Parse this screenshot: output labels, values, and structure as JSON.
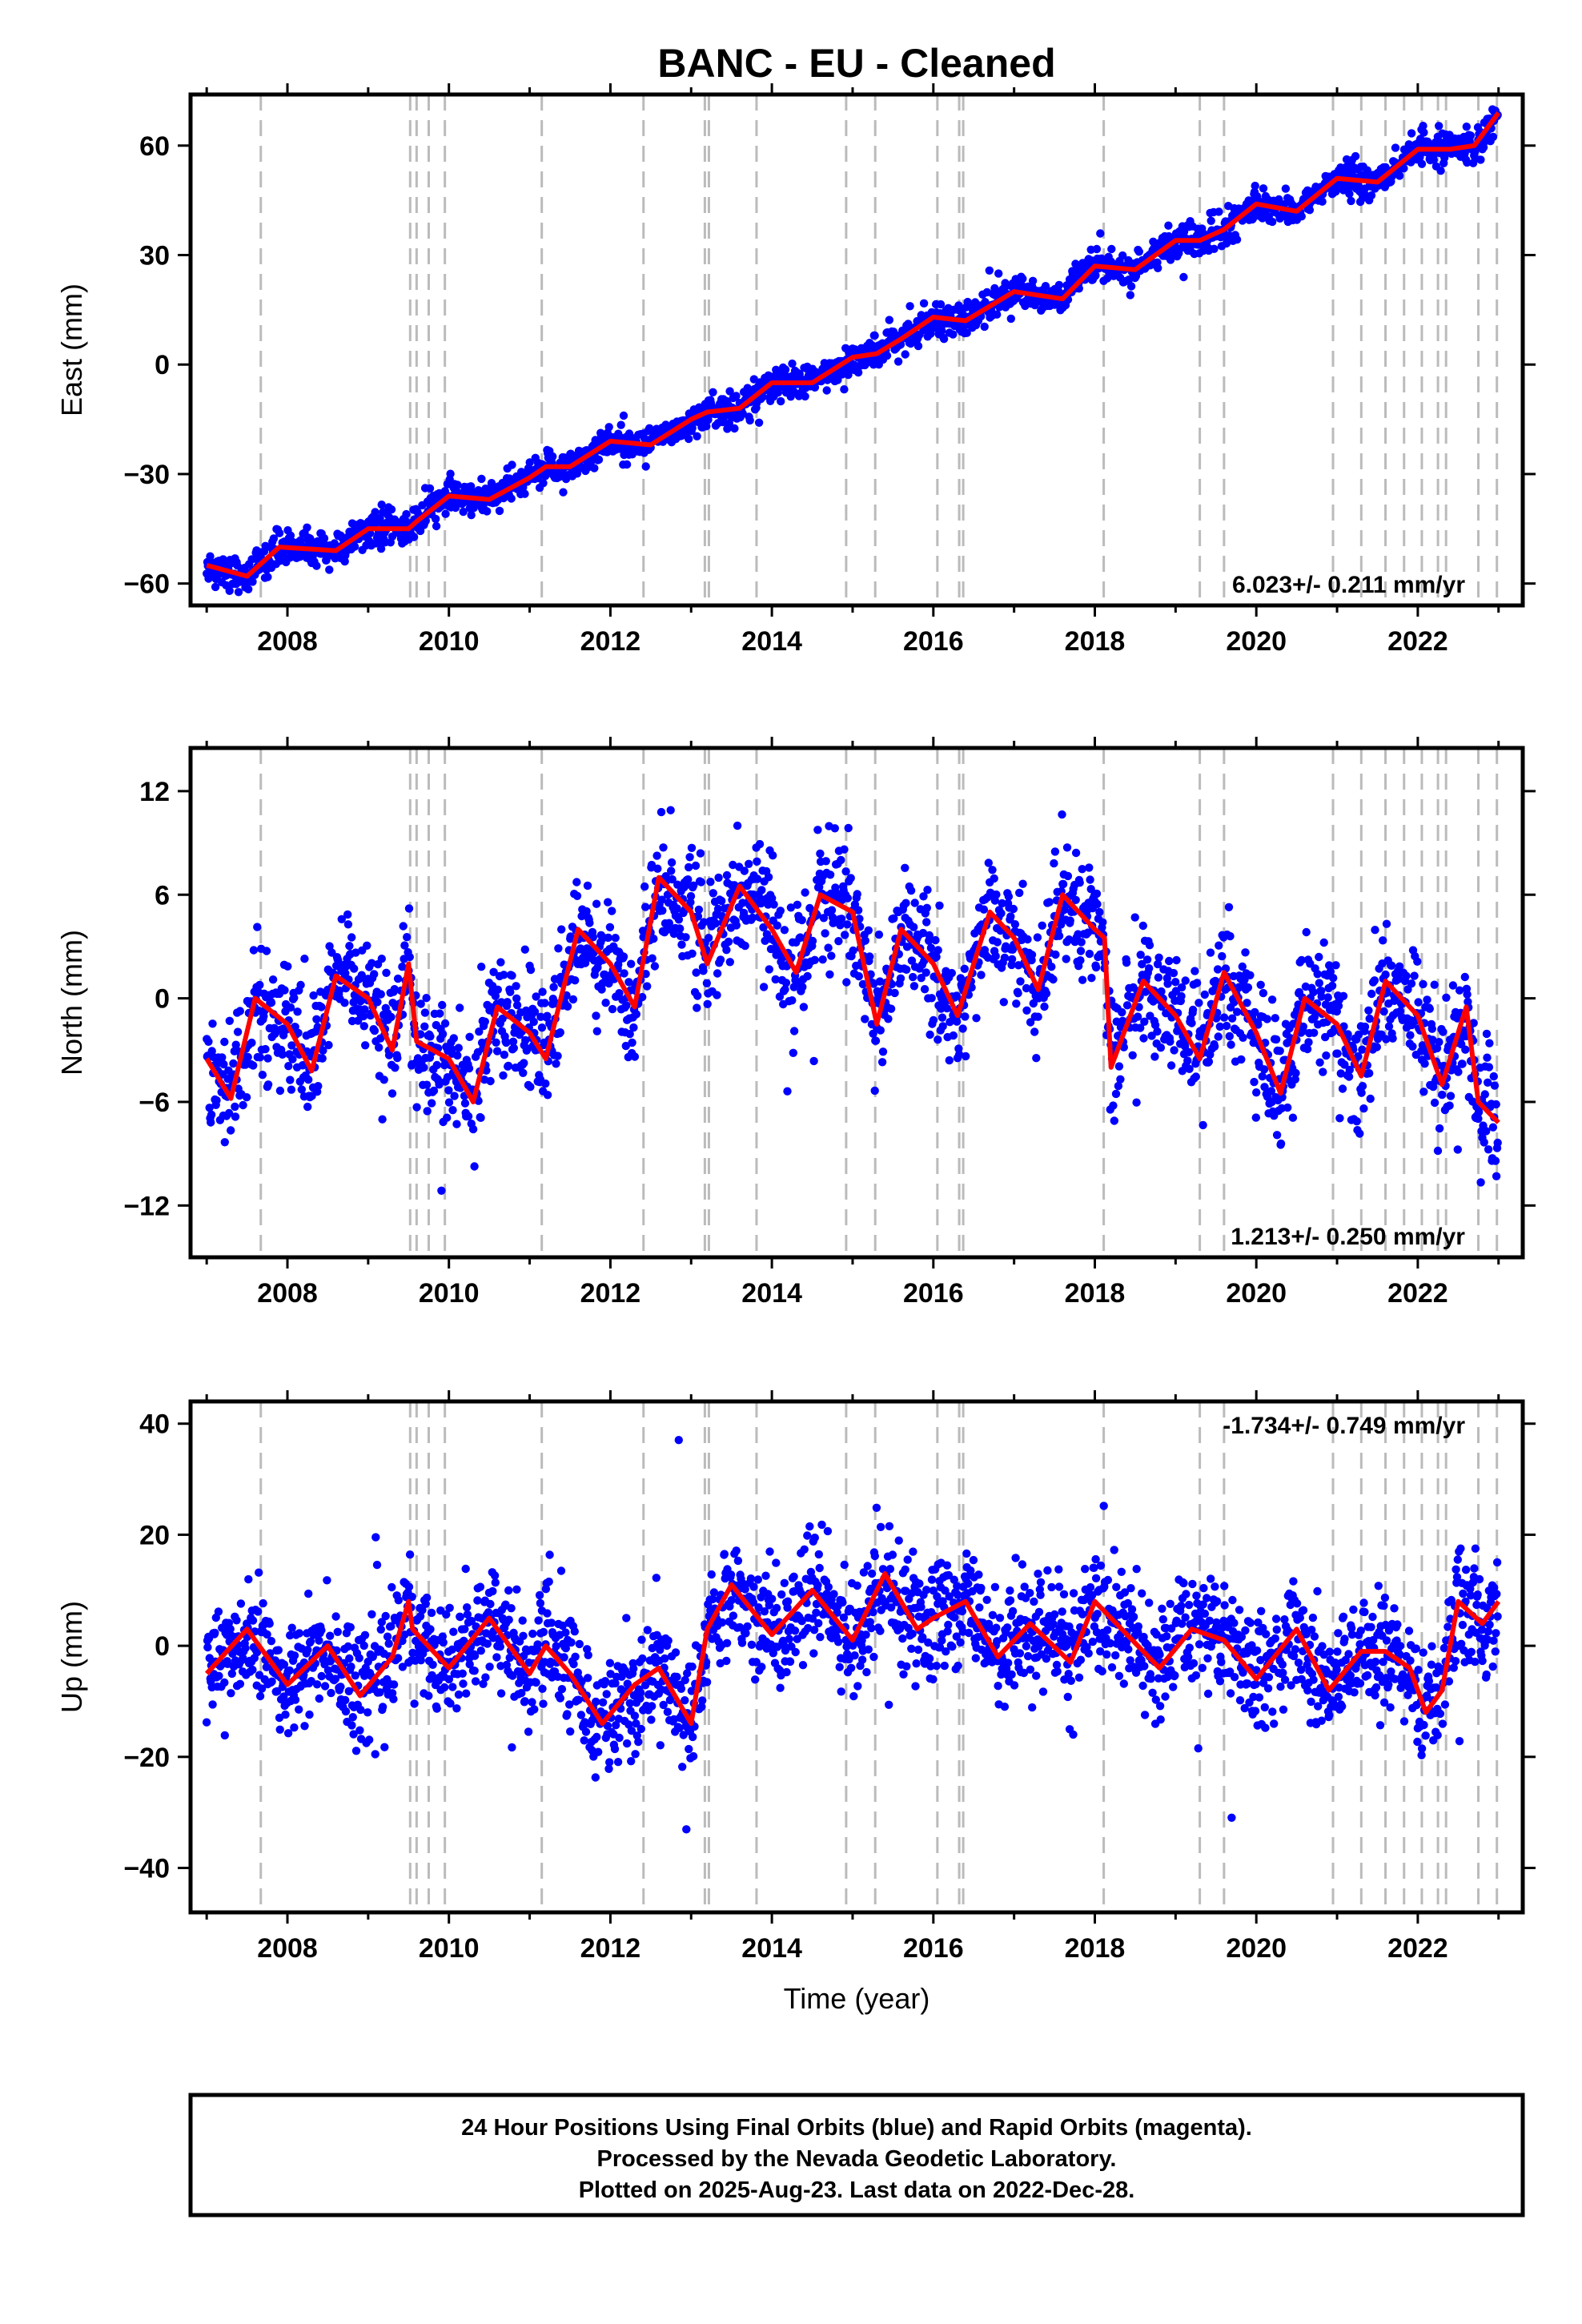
{
  "title": "BANC  - EU - Cleaned",
  "xlabel": "Time (year)",
  "footer": [
    "24 Hour Positions Using Final Orbits (blue) and Rapid Orbits (magenta).",
    "Processed by the Nevada Geodetic Laboratory.",
    "Plotted on 2025-Aug-23. Last data on 2022-Dec-28."
  ],
  "colors": {
    "data": "#0000ff",
    "model": "#ff0000",
    "steps": "#bbbbbb",
    "frame": "#000000"
  },
  "chart_data": [
    {
      "type": "scatter",
      "name": "east",
      "ylabel": "East (mm)",
      "rate_text": "6.023+/- 0.211 mm/yr",
      "rate_position": "bottom-right",
      "xlim": [
        2006.8,
        2023.3
      ],
      "ylim": [
        -66,
        74
      ],
      "x_ticks": [
        2008,
        2010,
        2012,
        2014,
        2016,
        2018,
        2020,
        2022
      ],
      "y_ticks": [
        -60,
        -30,
        0,
        30,
        60
      ],
      "model": {
        "x": [
          2007.0,
          2007.5,
          2007.9,
          2008.6,
          2009.0,
          2009.5,
          2009.6,
          2010.0,
          2010.5,
          2011.0,
          2011.2,
          2011.5,
          2012.0,
          2012.5,
          2013.0,
          2013.2,
          2013.6,
          2014.0,
          2014.5,
          2015.0,
          2015.3,
          2015.6,
          2016.0,
          2016.4,
          2017.0,
          2017.6,
          2018.0,
          2018.5,
          2019.0,
          2019.3,
          2019.6,
          2020.0,
          2020.5,
          2021.0,
          2021.5,
          2022.0,
          2022.4,
          2022.7,
          2023.0
        ],
        "y": [
          -55,
          -58,
          -50,
          -51,
          -45,
          -45,
          -43,
          -36,
          -37,
          -31,
          -28,
          -28,
          -21,
          -22,
          -15,
          -13,
          -12,
          -5,
          -5,
          2,
          3,
          7,
          13,
          12,
          20,
          18,
          27,
          26,
          34,
          34,
          37,
          44,
          42,
          51,
          50,
          59,
          59,
          60,
          69
        ]
      },
      "scatter_sd": 2.2
    },
    {
      "type": "scatter",
      "name": "north",
      "ylabel": "North (mm)",
      "rate_text": "1.213+/- 0.250 mm/yr",
      "rate_position": "bottom-right",
      "xlim": [
        2006.8,
        2023.3
      ],
      "ylim": [
        -15,
        14.5
      ],
      "x_ticks": [
        2008,
        2010,
        2012,
        2014,
        2016,
        2018,
        2020,
        2022
      ],
      "y_ticks": [
        -12,
        -6,
        0,
        6,
        12
      ],
      "model": {
        "x": [
          2007.0,
          2007.3,
          2007.6,
          2008.0,
          2008.3,
          2008.6,
          2009.0,
          2009.3,
          2009.5,
          2009.6,
          2010.0,
          2010.3,
          2010.6,
          2011.0,
          2011.2,
          2011.6,
          2012.0,
          2012.3,
          2012.6,
          2013.0,
          2013.2,
          2013.6,
          2014.0,
          2014.3,
          2014.6,
          2015.0,
          2015.3,
          2015.6,
          2016.0,
          2016.3,
          2016.7,
          2017.0,
          2017.3,
          2017.6,
          2018.0,
          2018.12,
          2018.2,
          2018.6,
          2019.0,
          2019.3,
          2019.6,
          2020.0,
          2020.3,
          2020.6,
          2021.0,
          2021.3,
          2021.6,
          2022.0,
          2022.3,
          2022.6,
          2022.75,
          2023.0
        ],
        "y": [
          -3.5,
          -5.8,
          0,
          -1.5,
          -4.2,
          1.3,
          0,
          -3,
          2,
          -2.5,
          -3.5,
          -6,
          -0.5,
          -2,
          -3.5,
          4,
          2,
          -0.5,
          7,
          5,
          2,
          6.5,
          4,
          1.5,
          6,
          5,
          -1.5,
          4,
          2,
          -1,
          5,
          3.5,
          0.5,
          6,
          4,
          3.5,
          -4,
          1,
          -1,
          -3.5,
          1.5,
          -2,
          -5.5,
          0,
          -1.5,
          -4.5,
          1,
          -1,
          -5,
          -0.5,
          -6,
          -7.2
        ]
      },
      "scatter_sd": 1.7
    },
    {
      "type": "scatter",
      "name": "up",
      "ylabel": "Up (mm)",
      "rate_text": "-1.734+/- 0.749 mm/yr",
      "rate_position": "top-right",
      "xlim": [
        2006.8,
        2023.3
      ],
      "ylim": [
        -48,
        44
      ],
      "x_ticks": [
        2008,
        2010,
        2012,
        2014,
        2016,
        2018,
        2020,
        2022
      ],
      "y_ticks": [
        -40,
        -20,
        0,
        20,
        40
      ],
      "model": {
        "x": [
          2007.0,
          2007.5,
          2008.0,
          2008.5,
          2008.9,
          2009.3,
          2009.5,
          2009.55,
          2010.0,
          2010.5,
          2011.0,
          2011.2,
          2011.5,
          2011.9,
          2012.3,
          2012.6,
          2013.0,
          2013.2,
          2013.5,
          2014.0,
          2014.5,
          2015.0,
          2015.4,
          2015.8,
          2016.0,
          2016.4,
          2016.8,
          2017.2,
          2017.7,
          2018.0,
          2018.4,
          2018.8,
          2019.2,
          2019.6,
          2020.0,
          2020.5,
          2020.9,
          2021.3,
          2021.6,
          2021.9,
          2022.1,
          2022.3,
          2022.5,
          2022.8,
          2023.0
        ],
        "y": [
          -5,
          3,
          -7,
          0,
          -9,
          -2,
          8,
          3,
          -4,
          5,
          -5,
          0,
          -5,
          -14,
          -7,
          -4,
          -14,
          3,
          11,
          2,
          10,
          1,
          13,
          3,
          5,
          8,
          -2,
          4,
          -3,
          8,
          2,
          -4,
          3,
          1,
          -6,
          3,
          -8,
          -1,
          -1,
          -4,
          -12,
          -8,
          8,
          4,
          8
        ]
      },
      "scatter_sd": 5.2
    }
  ],
  "step_epochs": [
    2007.67,
    2009.52,
    2009.6,
    2009.75,
    2009.95,
    2011.15,
    2012.41,
    2013.17,
    2013.22,
    2013.81,
    2014.92,
    2015.28,
    2016.05,
    2016.32,
    2016.37,
    2018.11,
    2019.3,
    2019.6,
    2020.95,
    2021.3,
    2021.6,
    2021.83,
    2022.05,
    2022.25,
    2022.35,
    2022.75,
    2022.98
  ]
}
